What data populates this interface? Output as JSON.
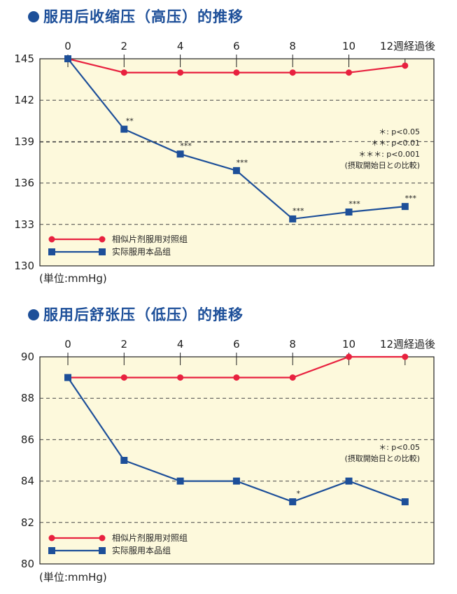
{
  "chart_data": [
    {
      "type": "line",
      "title": "服用后收缩压（高压）的推移",
      "unit_label": "(単位:mmHg)",
      "x": [
        0,
        2,
        4,
        6,
        8,
        10,
        12
      ],
      "x_tick_labels": [
        "0",
        "2",
        "4",
        "6",
        "8",
        "10",
        "12週経過後"
      ],
      "y_ticks": [
        145,
        142,
        139,
        136,
        133,
        130
      ],
      "ylim": [
        130,
        145
      ],
      "grid": "dashed horizontal",
      "legend_position": "bottom-left",
      "series": [
        {
          "name": "相似片剂服用对照组",
          "color": "#e8213f",
          "marker": "circle",
          "values": [
            145,
            144,
            144,
            144,
            144,
            144,
            144.5
          ],
          "labels": [
            "",
            "",
            "",
            "",
            "",
            "",
            ""
          ]
        },
        {
          "name": "实际服用本品组",
          "color": "#1d4f99",
          "marker": "square",
          "values": [
            145,
            139.9,
            138.1,
            136.9,
            133.4,
            133.9,
            134.3
          ],
          "labels": [
            "",
            "**",
            "***",
            "***",
            "***",
            "***",
            "***"
          ]
        }
      ],
      "significance_notes": [
        "＊: p<0.05",
        "＊＊: p<0.01",
        "＊＊＊: p<0.001",
        "(摂取開始日との比較)"
      ]
    },
    {
      "type": "line",
      "title": "服用后舒张压（低压）的推移",
      "unit_label": "(単位:mmHg)",
      "x": [
        0,
        2,
        4,
        6,
        8,
        10,
        12
      ],
      "x_tick_labels": [
        "0",
        "2",
        "4",
        "6",
        "8",
        "10",
        "12週経過後"
      ],
      "y_ticks": [
        90,
        88,
        86,
        84,
        82,
        80
      ],
      "ylim": [
        80,
        90
      ],
      "grid": "dashed horizontal",
      "legend_position": "bottom-left",
      "series": [
        {
          "name": "相似片剂服用对照组",
          "color": "#e8213f",
          "marker": "circle",
          "values": [
            89,
            89,
            89,
            89,
            89,
            90,
            90
          ],
          "labels": [
            "",
            "",
            "",
            "",
            "",
            "",
            ""
          ]
        },
        {
          "name": "实际服用本品组",
          "color": "#1d4f99",
          "marker": "square",
          "values": [
            89,
            85,
            84,
            84,
            83,
            84,
            83
          ],
          "labels": [
            "",
            "",
            "",
            "",
            "*",
            "",
            ""
          ]
        }
      ],
      "significance_notes": [
        "＊: p<0.05",
        "(摂取開始日との比較)"
      ]
    }
  ]
}
